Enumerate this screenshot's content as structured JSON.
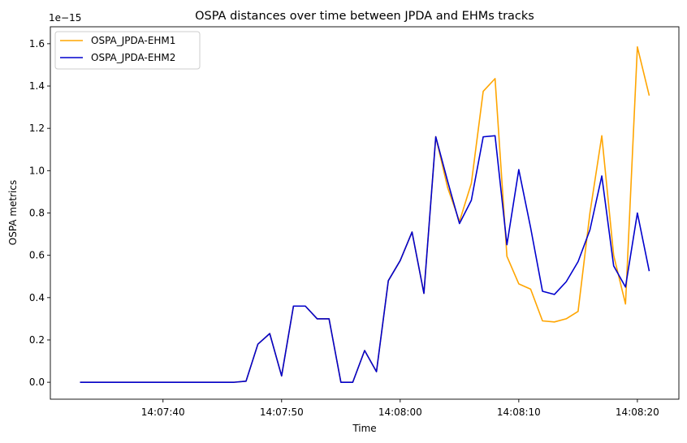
{
  "chart_data": {
    "type": "line",
    "title": "OSPA distances over time between JPDA and EHMs tracks",
    "xlabel": "Time",
    "ylabel": "OSPA metrics",
    "y_scale_label": "1e−15",
    "x_tick_labels": [
      "14:07:40",
      "14:07:50",
      "14:08:00",
      "14:08:10",
      "14:08:20"
    ],
    "x_tick_seconds": [
      40,
      50,
      60,
      70,
      80
    ],
    "y_tick_labels": [
      "0.0",
      "0.2",
      "0.4",
      "0.6",
      "0.8",
      "1.0",
      "1.2",
      "1.4",
      "1.6"
    ],
    "y_ticks": [
      0.0,
      0.2,
      0.4,
      0.6,
      0.8,
      1.0,
      1.2,
      1.4,
      1.6
    ],
    "x_range_seconds": [
      30.5,
      83.5
    ],
    "ylim": [
      -0.08,
      1.68
    ],
    "legend_position": "top-left",
    "grid": false,
    "x_seconds": [
      33,
      34,
      35,
      36,
      37,
      38,
      39,
      40,
      41,
      42,
      43,
      44,
      45,
      46,
      47,
      48,
      49,
      50,
      51,
      52,
      53,
      54,
      55,
      56,
      57,
      58,
      59,
      60,
      61,
      62,
      63,
      64,
      65,
      66,
      67,
      68,
      69,
      70,
      71,
      72,
      73,
      74,
      75,
      76,
      77,
      78,
      79,
      80,
      81
    ],
    "series": [
      {
        "name": "OSPA_JPDA-EHM1",
        "color": "#ffa500",
        "values": [
          0,
          0,
          0,
          0,
          0,
          0,
          0,
          0,
          0,
          0,
          0,
          0,
          0,
          0,
          0.005,
          0.18,
          0.23,
          0.03,
          0.36,
          0.36,
          0.3,
          0.3,
          0,
          0,
          0.15,
          0.05,
          0.48,
          0.575,
          0.71,
          0.42,
          1.16,
          0.92,
          0.76,
          0.94,
          1.375,
          1.435,
          0.595,
          0.465,
          0.44,
          0.29,
          0.285,
          0.3,
          0.335,
          0.8,
          1.165,
          0.6,
          0.37,
          1.585,
          1.355
        ]
      },
      {
        "name": "OSPA_JPDA-EHM2",
        "color": "#0000cd",
        "values": [
          0,
          0,
          0,
          0,
          0,
          0,
          0,
          0,
          0,
          0,
          0,
          0,
          0,
          0,
          0.005,
          0.18,
          0.23,
          0.03,
          0.36,
          0.36,
          0.3,
          0.3,
          0,
          0,
          0.15,
          0.05,
          0.48,
          0.575,
          0.71,
          0.42,
          1.16,
          0.95,
          0.75,
          0.86,
          1.16,
          1.165,
          0.65,
          1.005,
          0.73,
          0.43,
          0.415,
          0.475,
          0.57,
          0.72,
          0.975,
          0.55,
          0.45,
          0.8,
          0.525
        ]
      }
    ]
  }
}
